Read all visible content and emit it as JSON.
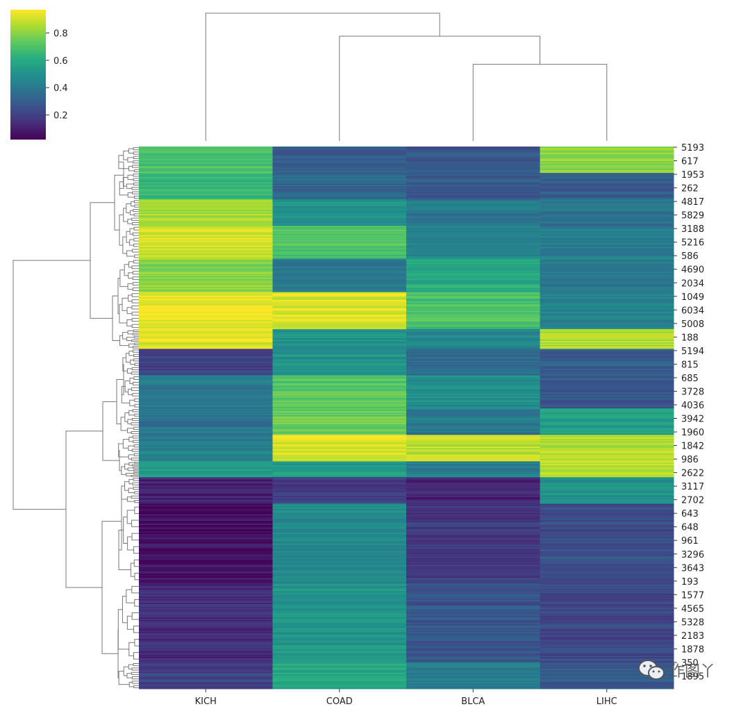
{
  "chart_data": {
    "type": "heatmap",
    "title": "",
    "colormap": "viridis",
    "columns": [
      "KICH",
      "COAD",
      "BLCA",
      "LIHC"
    ],
    "row_tick_labels": [
      "5193",
      "617",
      "1953",
      "262",
      "4817",
      "5829",
      "3188",
      "5216",
      "586",
      "4690",
      "2034",
      "1049",
      "6034",
      "5008",
      "188",
      "5194",
      "815",
      "685",
      "3728",
      "4036",
      "3942",
      "1960",
      "1842",
      "986",
      "2622",
      "3117",
      "2702",
      "643",
      "648",
      "961",
      "3296",
      "3643",
      "193",
      "1577",
      "4565",
      "5328",
      "2183",
      "1878",
      "350",
      "1895"
    ],
    "colorbar": {
      "range": [
        0.02,
        0.97
      ],
      "ticks": [
        0.2,
        0.4,
        0.6,
        0.8
      ],
      "tick_labels": [
        "0.2",
        "0.4",
        "0.6",
        "0.8"
      ]
    },
    "row_blocks": [
      {
        "rows": 20,
        "values": [
          0.7,
          0.3,
          0.28,
          0.8
        ]
      },
      {
        "rows": 20,
        "values": [
          0.66,
          0.34,
          0.3,
          0.3
        ]
      },
      {
        "rows": 20,
        "values": [
          0.84,
          0.5,
          0.4,
          0.38
        ]
      },
      {
        "rows": 25,
        "values": [
          0.9,
          0.7,
          0.45,
          0.42
        ]
      },
      {
        "rows": 25,
        "values": [
          0.8,
          0.4,
          0.6,
          0.4
        ]
      },
      {
        "rows": 28,
        "values": [
          0.95,
          0.92,
          0.7,
          0.45
        ]
      },
      {
        "rows": 15,
        "values": [
          0.92,
          0.5,
          0.46,
          0.86
        ]
      },
      {
        "rows": 20,
        "values": [
          0.2,
          0.5,
          0.35,
          0.3
        ]
      },
      {
        "rows": 25,
        "values": [
          0.4,
          0.72,
          0.5,
          0.28
        ]
      },
      {
        "rows": 20,
        "values": [
          0.38,
          0.75,
          0.4,
          0.55
        ]
      },
      {
        "rows": 20,
        "values": [
          0.42,
          0.92,
          0.88,
          0.86
        ]
      },
      {
        "rows": 12,
        "values": [
          0.55,
          0.55,
          0.42,
          0.88
        ]
      },
      {
        "rows": 20,
        "values": [
          0.1,
          0.2,
          0.12,
          0.5
        ]
      },
      {
        "rows": 60,
        "values": [
          0.06,
          0.47,
          0.18,
          0.25
        ]
      },
      {
        "rows": 60,
        "values": [
          0.14,
          0.52,
          0.28,
          0.22
        ]
      },
      {
        "rows": 20,
        "values": [
          0.2,
          0.58,
          0.42,
          0.3
        ]
      }
    ],
    "column_dendrogram": [
      {
        "merge": [
          "BLCA",
          "LIHC"
        ],
        "height": 0.6
      },
      {
        "merge": [
          "COAD",
          "BLCA+LIHC"
        ],
        "height": 0.82
      },
      {
        "merge": [
          "KICH",
          "COAD+BLCA+LIHC"
        ],
        "height": 1.0
      }
    ]
  },
  "watermark": {
    "icon": "wechat-icon",
    "text": "作图丫"
  }
}
